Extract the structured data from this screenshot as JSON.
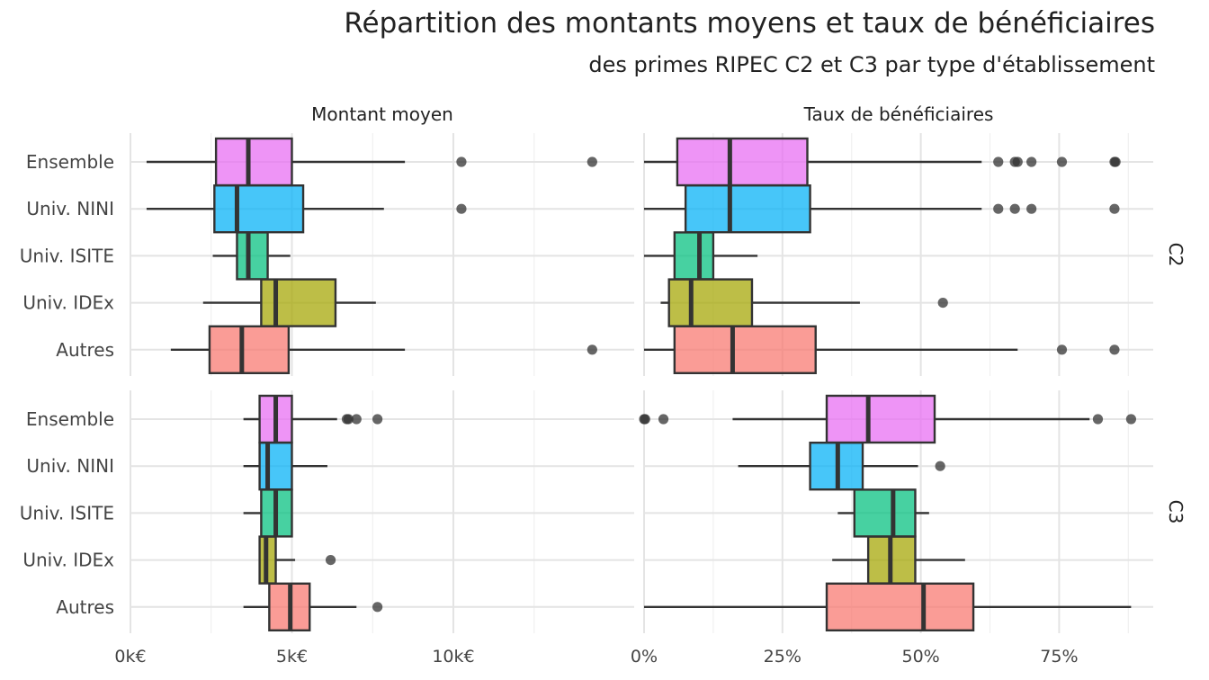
{
  "chart_data": {
    "type": "boxplot",
    "title": "Répartition des montants moyens et taux de bénéficiaires",
    "subtitle": "des primes RIPEC C2 et C3 par type d'établissement",
    "facet_columns": [
      "Montant moyen",
      "Taux de bénéficiaires"
    ],
    "facet_rows": [
      "C2",
      "C3"
    ],
    "categories": [
      "Ensemble",
      "Univ. NINI",
      "Univ. ISITE",
      "Univ. IDEx",
      "Autres"
    ],
    "colors": {
      "Ensemble": "#E76BF3",
      "Univ. NINI": "#00B0F6",
      "Univ. ISITE": "#00BF7D",
      "Univ. IDEx": "#A3A500",
      "Autres": "#F8766D"
    },
    "axes": {
      "montant": {
        "xlim": [
          0,
          15600
        ],
        "ticks": [
          0,
          5000,
          10000
        ],
        "tick_labels": [
          "0k€",
          "5k€",
          "10k€"
        ],
        "minor_ticks": [
          2500,
          7500,
          12500
        ]
      },
      "taux": {
        "xlim": [
          0,
          92
        ],
        "ticks": [
          0,
          25,
          50,
          75
        ],
        "tick_labels": [
          "0%",
          "25%",
          "50%",
          "75%"
        ],
        "minor_ticks": [
          12.5,
          37.5,
          62.5,
          87.5
        ]
      }
    },
    "grid": true,
    "legend": "none",
    "panels": [
      {
        "column": "Montant moyen",
        "row": "C2",
        "boxes": [
          {
            "category": "Ensemble",
            "whisker_low": 500,
            "q1": 2650,
            "median": 3650,
            "q3": 5000,
            "whisker_high": 8500,
            "outliers": [
              10250,
              14300
            ]
          },
          {
            "category": "Univ. NINI",
            "whisker_low": 500,
            "q1": 2600,
            "median": 3300,
            "q3": 5350,
            "whisker_high": 7850,
            "outliers": [
              10250
            ]
          },
          {
            "category": "Univ. ISITE",
            "whisker_low": 2550,
            "q1": 3300,
            "median": 3650,
            "q3": 4250,
            "whisker_high": 4950,
            "outliers": []
          },
          {
            "category": "Univ. IDEx",
            "whisker_low": 2250,
            "q1": 4050,
            "median": 4500,
            "q3": 6350,
            "whisker_high": 7600,
            "outliers": []
          },
          {
            "category": "Autres",
            "whisker_low": 1250,
            "q1": 2450,
            "median": 3450,
            "q3": 4900,
            "whisker_high": 8500,
            "outliers": [
              14300
            ]
          }
        ]
      },
      {
        "column": "Taux de bénéficiaires",
        "row": "C2",
        "boxes": [
          {
            "category": "Ensemble",
            "whisker_low": 0,
            "q1": 6,
            "median": 15.5,
            "q3": 29.5,
            "whisker_high": 61,
            "outliers": [
              64,
              67,
              67.5,
              70,
              75.5,
              85,
              85.2
            ]
          },
          {
            "category": "Univ. NINI",
            "whisker_low": 0,
            "q1": 7.5,
            "median": 15.5,
            "q3": 30,
            "whisker_high": 61,
            "outliers": [
              64,
              67,
              70,
              85
            ]
          },
          {
            "category": "Univ. ISITE",
            "whisker_low": 0,
            "q1": 5.5,
            "median": 10,
            "q3": 12.5,
            "whisker_high": 20.5,
            "outliers": []
          },
          {
            "category": "Univ. IDEx",
            "whisker_low": 3,
            "q1": 4.5,
            "median": 8.5,
            "q3": 19.5,
            "whisker_high": 39,
            "outliers": [
              54
            ]
          },
          {
            "category": "Autres",
            "whisker_low": 0,
            "q1": 5.5,
            "median": 16,
            "q3": 31,
            "whisker_high": 67.5,
            "outliers": [
              75.5,
              85
            ]
          }
        ]
      },
      {
        "column": "Montant moyen",
        "row": "C3",
        "boxes": [
          {
            "category": "Ensemble",
            "whisker_low": 3500,
            "q1": 4000,
            "median": 4500,
            "q3": 5000,
            "whisker_high": 6400,
            "outliers": [
              6700,
              6750,
              7000,
              7650
            ]
          },
          {
            "category": "Univ. NINI",
            "whisker_low": 3500,
            "q1": 4000,
            "median": 4250,
            "q3": 5000,
            "whisker_high": 6100,
            "outliers": []
          },
          {
            "category": "Univ. ISITE",
            "whisker_low": 3500,
            "q1": 4050,
            "median": 4500,
            "q3": 5000,
            "whisker_high": 5000,
            "outliers": []
          },
          {
            "category": "Univ. IDEx",
            "whisker_low": 4000,
            "q1": 4000,
            "median": 4200,
            "q3": 4500,
            "whisker_high": 5100,
            "outliers": [
              6200
            ]
          },
          {
            "category": "Autres",
            "whisker_low": 3500,
            "q1": 4300,
            "median": 4950,
            "q3": 5550,
            "whisker_high": 7000,
            "outliers": [
              7650
            ]
          }
        ]
      },
      {
        "column": "Taux de bénéficiaires",
        "row": "C3",
        "boxes": [
          {
            "category": "Ensemble",
            "whisker_low": 16,
            "q1": 33,
            "median": 40.5,
            "q3": 52.5,
            "whisker_high": 80.5,
            "outliers": [
              0,
              0.2,
              3.5,
              82,
              88
            ]
          },
          {
            "category": "Univ. NINI",
            "whisker_low": 17,
            "q1": 30,
            "median": 35,
            "q3": 39.5,
            "whisker_high": 49.5,
            "outliers": [
              53.5
            ]
          },
          {
            "category": "Univ. ISITE",
            "whisker_low": 35,
            "q1": 38,
            "median": 45,
            "q3": 49,
            "whisker_high": 51.5,
            "outliers": []
          },
          {
            "category": "Univ. IDEx",
            "whisker_low": 34,
            "q1": 40.5,
            "median": 44.5,
            "q3": 49,
            "whisker_high": 58,
            "outliers": []
          },
          {
            "category": "Autres",
            "whisker_low": 0,
            "q1": 33,
            "median": 50.5,
            "q3": 59.5,
            "whisker_high": 88,
            "outliers": []
          }
        ]
      }
    ]
  }
}
